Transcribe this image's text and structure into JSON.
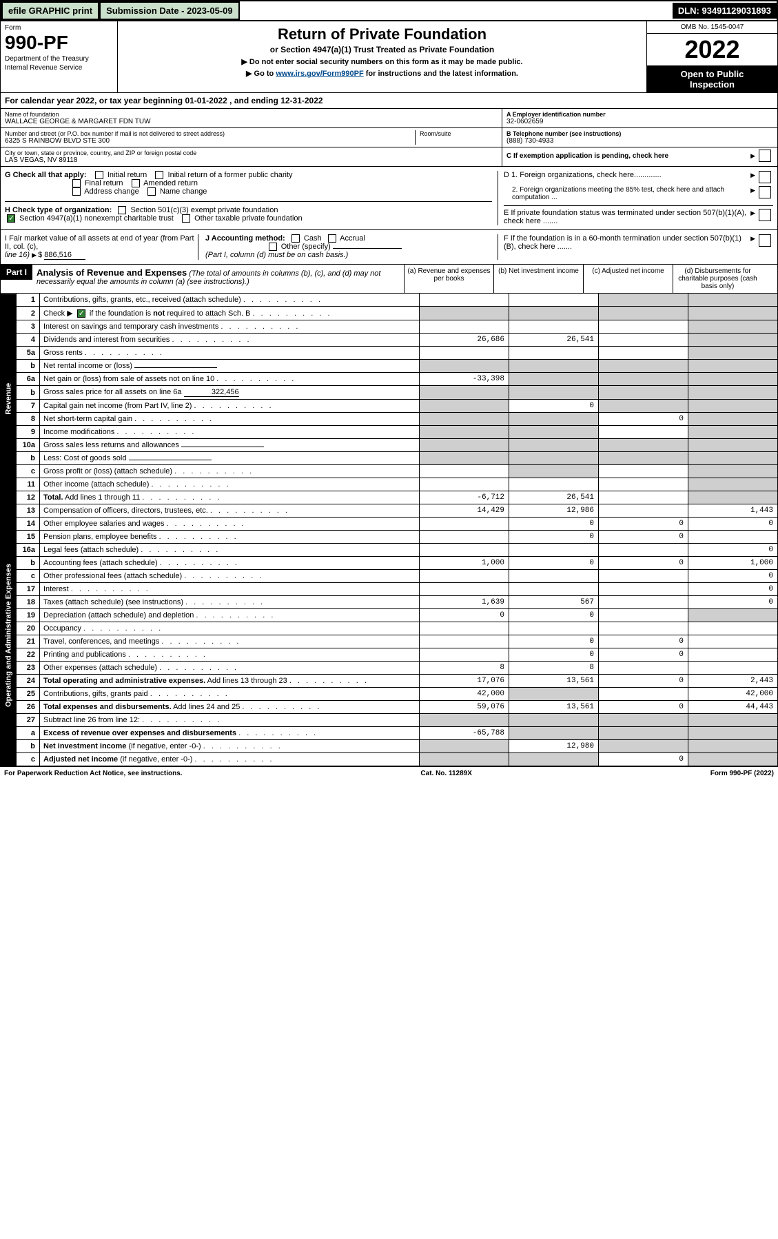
{
  "topbar": {
    "efile": "efile GRAPHIC print",
    "submission_label": "Submission Date - 2023-05-09",
    "dln": "DLN: 93491129031893"
  },
  "header": {
    "form_word": "Form",
    "form_number": "990-PF",
    "dept1": "Department of the Treasury",
    "dept2": "Internal Revenue Service",
    "title": "Return of Private Foundation",
    "subtitle": "or Section 4947(a)(1) Trust Treated as Private Foundation",
    "instr1": "▶ Do not enter social security numbers on this form as it may be made public.",
    "instr2_pre": "▶ Go to ",
    "instr2_link": "www.irs.gov/Form990PF",
    "instr2_post": " for instructions and the latest information.",
    "omb": "OMB No. 1545-0047",
    "year": "2022",
    "open1": "Open to Public",
    "open2": "Inspection"
  },
  "calendar": {
    "text_pre": "For calendar year 2022, or tax year beginning ",
    "begin": "01-01-2022",
    "text_mid": " , and ending ",
    "end": "12-31-2022"
  },
  "entity": {
    "name_lbl": "Name of foundation",
    "name": "WALLACE GEORGE & MARGARET FDN TUW",
    "addr_lbl": "Number and street (or P.O. box number if mail is not delivered to street address)",
    "addr": "6325 S RAINBOW BLVD STE 300",
    "room_lbl": "Room/suite",
    "city_lbl": "City or town, state or province, country, and ZIP or foreign postal code",
    "city": "LAS VEGAS, NV  89118",
    "ein_lbl": "A Employer identification number",
    "ein": "32-0602659",
    "tel_lbl": "B Telephone number (see instructions)",
    "tel": "(888) 730-4933",
    "c_lbl": "C If exemption application is pending, check here",
    "d1_lbl": "D 1. Foreign organizations, check here.............",
    "d2_lbl": "2. Foreign organizations meeting the 85% test, check here and attach computation ...",
    "e_lbl": "E If private foundation status was terminated under section 507(b)(1)(A), check here .......",
    "f_lbl": "F If the foundation is in a 60-month termination under section 507(b)(1)(B), check here .......",
    "g_lbl": "G Check all that apply:",
    "g_initial": "Initial return",
    "g_initial_former": "Initial return of a former public charity",
    "g_final": "Final return",
    "g_amended": "Amended return",
    "g_addr": "Address change",
    "g_name": "Name change",
    "h_lbl": "H Check type of organization:",
    "h_501c3": "Section 501(c)(3) exempt private foundation",
    "h_4947": "Section 4947(a)(1) nonexempt charitable trust",
    "h_other": "Other taxable private foundation",
    "i_lbl": "I Fair market value of all assets at end of year (from Part II, col. (c),",
    "i_line": "line 16)",
    "i_val": "886,516",
    "j_lbl": "J Accounting method:",
    "j_cash": "Cash",
    "j_accrual": "Accrual",
    "j_other": "Other (specify)",
    "j_note": "(Part I, column (d) must be on cash basis.)"
  },
  "part1": {
    "label": "Part I",
    "title": "Analysis of Revenue and Expenses",
    "note": "(The total of amounts in columns (b), (c), and (d) may not necessarily equal the amounts in column (a) (see instructions).)",
    "col_a": "(a) Revenue and expenses per books",
    "col_b": "(b) Net investment income",
    "col_c": "(c) Adjusted net income",
    "col_d": "(d) Disbursements for charitable purposes (cash basis only)",
    "revenue_label": "Revenue",
    "expenses_label": "Operating and Administrative Expenses"
  },
  "rows": [
    {
      "n": "1",
      "d": "Contributions, gifts, grants, etc., received (attach schedule)",
      "a": "",
      "b": "",
      "c": "g",
      "dd": "g"
    },
    {
      "n": "2",
      "d": "Check ▶ ▢ if the foundation is <b>not</b> required to attach Sch. B",
      "a": "g",
      "b": "g",
      "c": "g",
      "dd": "g",
      "chk": true
    },
    {
      "n": "3",
      "d": "Interest on savings and temporary cash investments",
      "a": "",
      "b": "",
      "c": "",
      "dd": "g"
    },
    {
      "n": "4",
      "d": "Dividends and interest from securities",
      "a": "26,686",
      "b": "26,541",
      "c": "",
      "dd": "g"
    },
    {
      "n": "5a",
      "d": "Gross rents",
      "a": "",
      "b": "",
      "c": "",
      "dd": "g"
    },
    {
      "n": "b",
      "d": "Net rental income or (loss)",
      "a": "g",
      "b": "g",
      "c": "g",
      "dd": "g",
      "inline": true
    },
    {
      "n": "6a",
      "d": "Net gain or (loss) from sale of assets not on line 10",
      "a": "-33,398",
      "b": "g",
      "c": "g",
      "dd": "g"
    },
    {
      "n": "b",
      "d": "Gross sales price for all assets on line 6a",
      "a": "g",
      "b": "g",
      "c": "g",
      "dd": "g",
      "inline": true,
      "inline_val": "322,456"
    },
    {
      "n": "7",
      "d": "Capital gain net income (from Part IV, line 2)",
      "a": "g",
      "b": "0",
      "c": "g",
      "dd": "g"
    },
    {
      "n": "8",
      "d": "Net short-term capital gain",
      "a": "g",
      "b": "g",
      "c": "0",
      "dd": "g"
    },
    {
      "n": "9",
      "d": "Income modifications",
      "a": "g",
      "b": "g",
      "c": "",
      "dd": "g"
    },
    {
      "n": "10a",
      "d": "Gross sales less returns and allowances",
      "a": "g",
      "b": "g",
      "c": "g",
      "dd": "g",
      "inline": true
    },
    {
      "n": "b",
      "d": "Less: Cost of goods sold",
      "a": "g",
      "b": "g",
      "c": "g",
      "dd": "g",
      "inline": true
    },
    {
      "n": "c",
      "d": "Gross profit or (loss) (attach schedule)",
      "a": "",
      "b": "g",
      "c": "",
      "dd": "g"
    },
    {
      "n": "11",
      "d": "Other income (attach schedule)",
      "a": "",
      "b": "",
      "c": "",
      "dd": "g"
    },
    {
      "n": "12",
      "d": "<b>Total.</b> Add lines 1 through 11",
      "a": "-6,712",
      "b": "26,541",
      "c": "",
      "dd": "g"
    },
    {
      "n": "13",
      "d": "Compensation of officers, directors, trustees, etc.",
      "a": "14,429",
      "b": "12,986",
      "c": "",
      "dd": "1,443"
    },
    {
      "n": "14",
      "d": "Other employee salaries and wages",
      "a": "",
      "b": "0",
      "c": "0",
      "dd": "0"
    },
    {
      "n": "15",
      "d": "Pension plans, employee benefits",
      "a": "",
      "b": "0",
      "c": "0",
      "dd": ""
    },
    {
      "n": "16a",
      "d": "Legal fees (attach schedule)",
      "a": "",
      "b": "",
      "c": "",
      "dd": "0"
    },
    {
      "n": "b",
      "d": "Accounting fees (attach schedule)",
      "a": "1,000",
      "b": "0",
      "c": "0",
      "dd": "1,000"
    },
    {
      "n": "c",
      "d": "Other professional fees (attach schedule)",
      "a": "",
      "b": "",
      "c": "",
      "dd": "0"
    },
    {
      "n": "17",
      "d": "Interest",
      "a": "",
      "b": "",
      "c": "",
      "dd": "0"
    },
    {
      "n": "18",
      "d": "Taxes (attach schedule) (see instructions)",
      "a": "1,639",
      "b": "567",
      "c": "",
      "dd": "0"
    },
    {
      "n": "19",
      "d": "Depreciation (attach schedule) and depletion",
      "a": "0",
      "b": "0",
      "c": "",
      "dd": "g"
    },
    {
      "n": "20",
      "d": "Occupancy",
      "a": "",
      "b": "",
      "c": "",
      "dd": ""
    },
    {
      "n": "21",
      "d": "Travel, conferences, and meetings",
      "a": "",
      "b": "0",
      "c": "0",
      "dd": ""
    },
    {
      "n": "22",
      "d": "Printing and publications",
      "a": "",
      "b": "0",
      "c": "0",
      "dd": ""
    },
    {
      "n": "23",
      "d": "Other expenses (attach schedule)",
      "a": "8",
      "b": "8",
      "c": "",
      "dd": ""
    },
    {
      "n": "24",
      "d": "<b>Total operating and administrative expenses.</b> Add lines 13 through 23",
      "a": "17,076",
      "b": "13,561",
      "c": "0",
      "dd": "2,443"
    },
    {
      "n": "25",
      "d": "Contributions, gifts, grants paid",
      "a": "42,000",
      "b": "g",
      "c": "",
      "dd": "42,000"
    },
    {
      "n": "26",
      "d": "<b>Total expenses and disbursements.</b> Add lines 24 and 25",
      "a": "59,076",
      "b": "13,561",
      "c": "0",
      "dd": "44,443"
    },
    {
      "n": "27",
      "d": "Subtract line 26 from line 12:",
      "a": "g",
      "b": "g",
      "c": "g",
      "dd": "g"
    },
    {
      "n": "a",
      "d": "<b>Excess of revenue over expenses and disbursements</b>",
      "a": "-65,788",
      "b": "g",
      "c": "g",
      "dd": "g"
    },
    {
      "n": "b",
      "d": "<b>Net investment income</b> (if negative, enter -0-)",
      "a": "g",
      "b": "12,980",
      "c": "g",
      "dd": "g"
    },
    {
      "n": "c",
      "d": "<b>Adjusted net income</b> (if negative, enter -0-)",
      "a": "g",
      "b": "g",
      "c": "0",
      "dd": "g"
    }
  ],
  "footer": {
    "left": "For Paperwork Reduction Act Notice, see instructions.",
    "mid": "Cat. No. 11289X",
    "right": "Form 990-PF (2022)"
  }
}
